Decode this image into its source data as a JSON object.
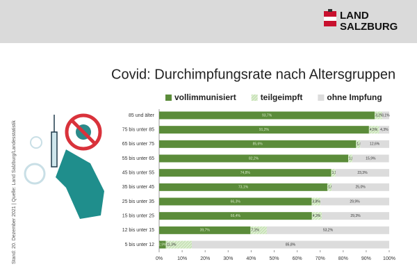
{
  "header": {
    "logo_line1": "LAND",
    "logo_line2": "SALZBURG"
  },
  "side_note": "Stand: 20. Dezember 2021 | Quelle: Land Salzburg/Landesstatistik",
  "chart_data": {
    "type": "bar",
    "orientation": "horizontal",
    "stacked": true,
    "title": "Covid: Durchimpfungsrate nach Altersgruppen",
    "categories": [
      "85 und älter",
      "75 bis unter 85",
      "65 bis unter 75",
      "55 bis unter 65",
      "45 bis unter 55",
      "35 bis unter 45",
      "25 bis unter 35",
      "15 bis unter 25",
      "12 bis unter 15",
      "5 bis unter 12"
    ],
    "series": [
      {
        "name": "vollimmunisiert",
        "color": "#5b8c3a",
        "values": [
          93.7,
          91.2,
          85.6,
          82.2,
          74.8,
          73.1,
          66.3,
          66.4,
          39.7,
          2.9
        ],
        "value_labels": [
          "93,7%",
          "91,2%",
          "85,6%",
          "82,2%",
          "74,8%",
          "73,1%",
          "66,3%",
          "66,4%",
          "39,7%",
          "2,9%"
        ]
      },
      {
        "name": "teilgeimpft",
        "color": "#c9e3b8",
        "values": [
          3.2,
          4.5,
          1.8,
          1.8,
          1.9,
          1.9,
          3.8,
          4.3,
          7.1,
          11.3
        ],
        "value_labels": [
          "3,2%",
          "4,5%",
          "1,8%",
          "1,8%",
          "1,9%",
          "1,9%",
          "3,8%",
          "4,3%",
          "7,1%",
          "11,3%"
        ]
      },
      {
        "name": "ohne Impfung",
        "color": "#dcdcdc",
        "values": [
          3.1,
          4.3,
          12.6,
          15.9,
          23.3,
          25.0,
          29.9,
          29.3,
          53.2,
          85.8
        ],
        "value_labels": [
          "3,1%",
          "4,3%",
          "12,6%",
          "15,9%",
          "23,3%",
          "25,0%",
          "29,9%",
          "29,3%",
          "53,2%",
          "85,8%"
        ]
      }
    ],
    "xlim": [
      0,
      100
    ],
    "xticks": [
      {
        "value": 0,
        "label": "0%"
      },
      {
        "value": 10,
        "label": "10%"
      },
      {
        "value": 20,
        "label": "20%"
      },
      {
        "value": 30,
        "label": "30%"
      },
      {
        "value": 40,
        "label": "40%"
      },
      {
        "value": 50,
        "label": "50%"
      },
      {
        "value": 60,
        "label": "60%"
      },
      {
        "value": 70,
        "label": "70%"
      },
      {
        "value": 80,
        "label": "80%"
      },
      {
        "value": 90,
        "label": "90%"
      },
      {
        "value": 100,
        "label": "100%"
      }
    ],
    "legend": "top"
  }
}
